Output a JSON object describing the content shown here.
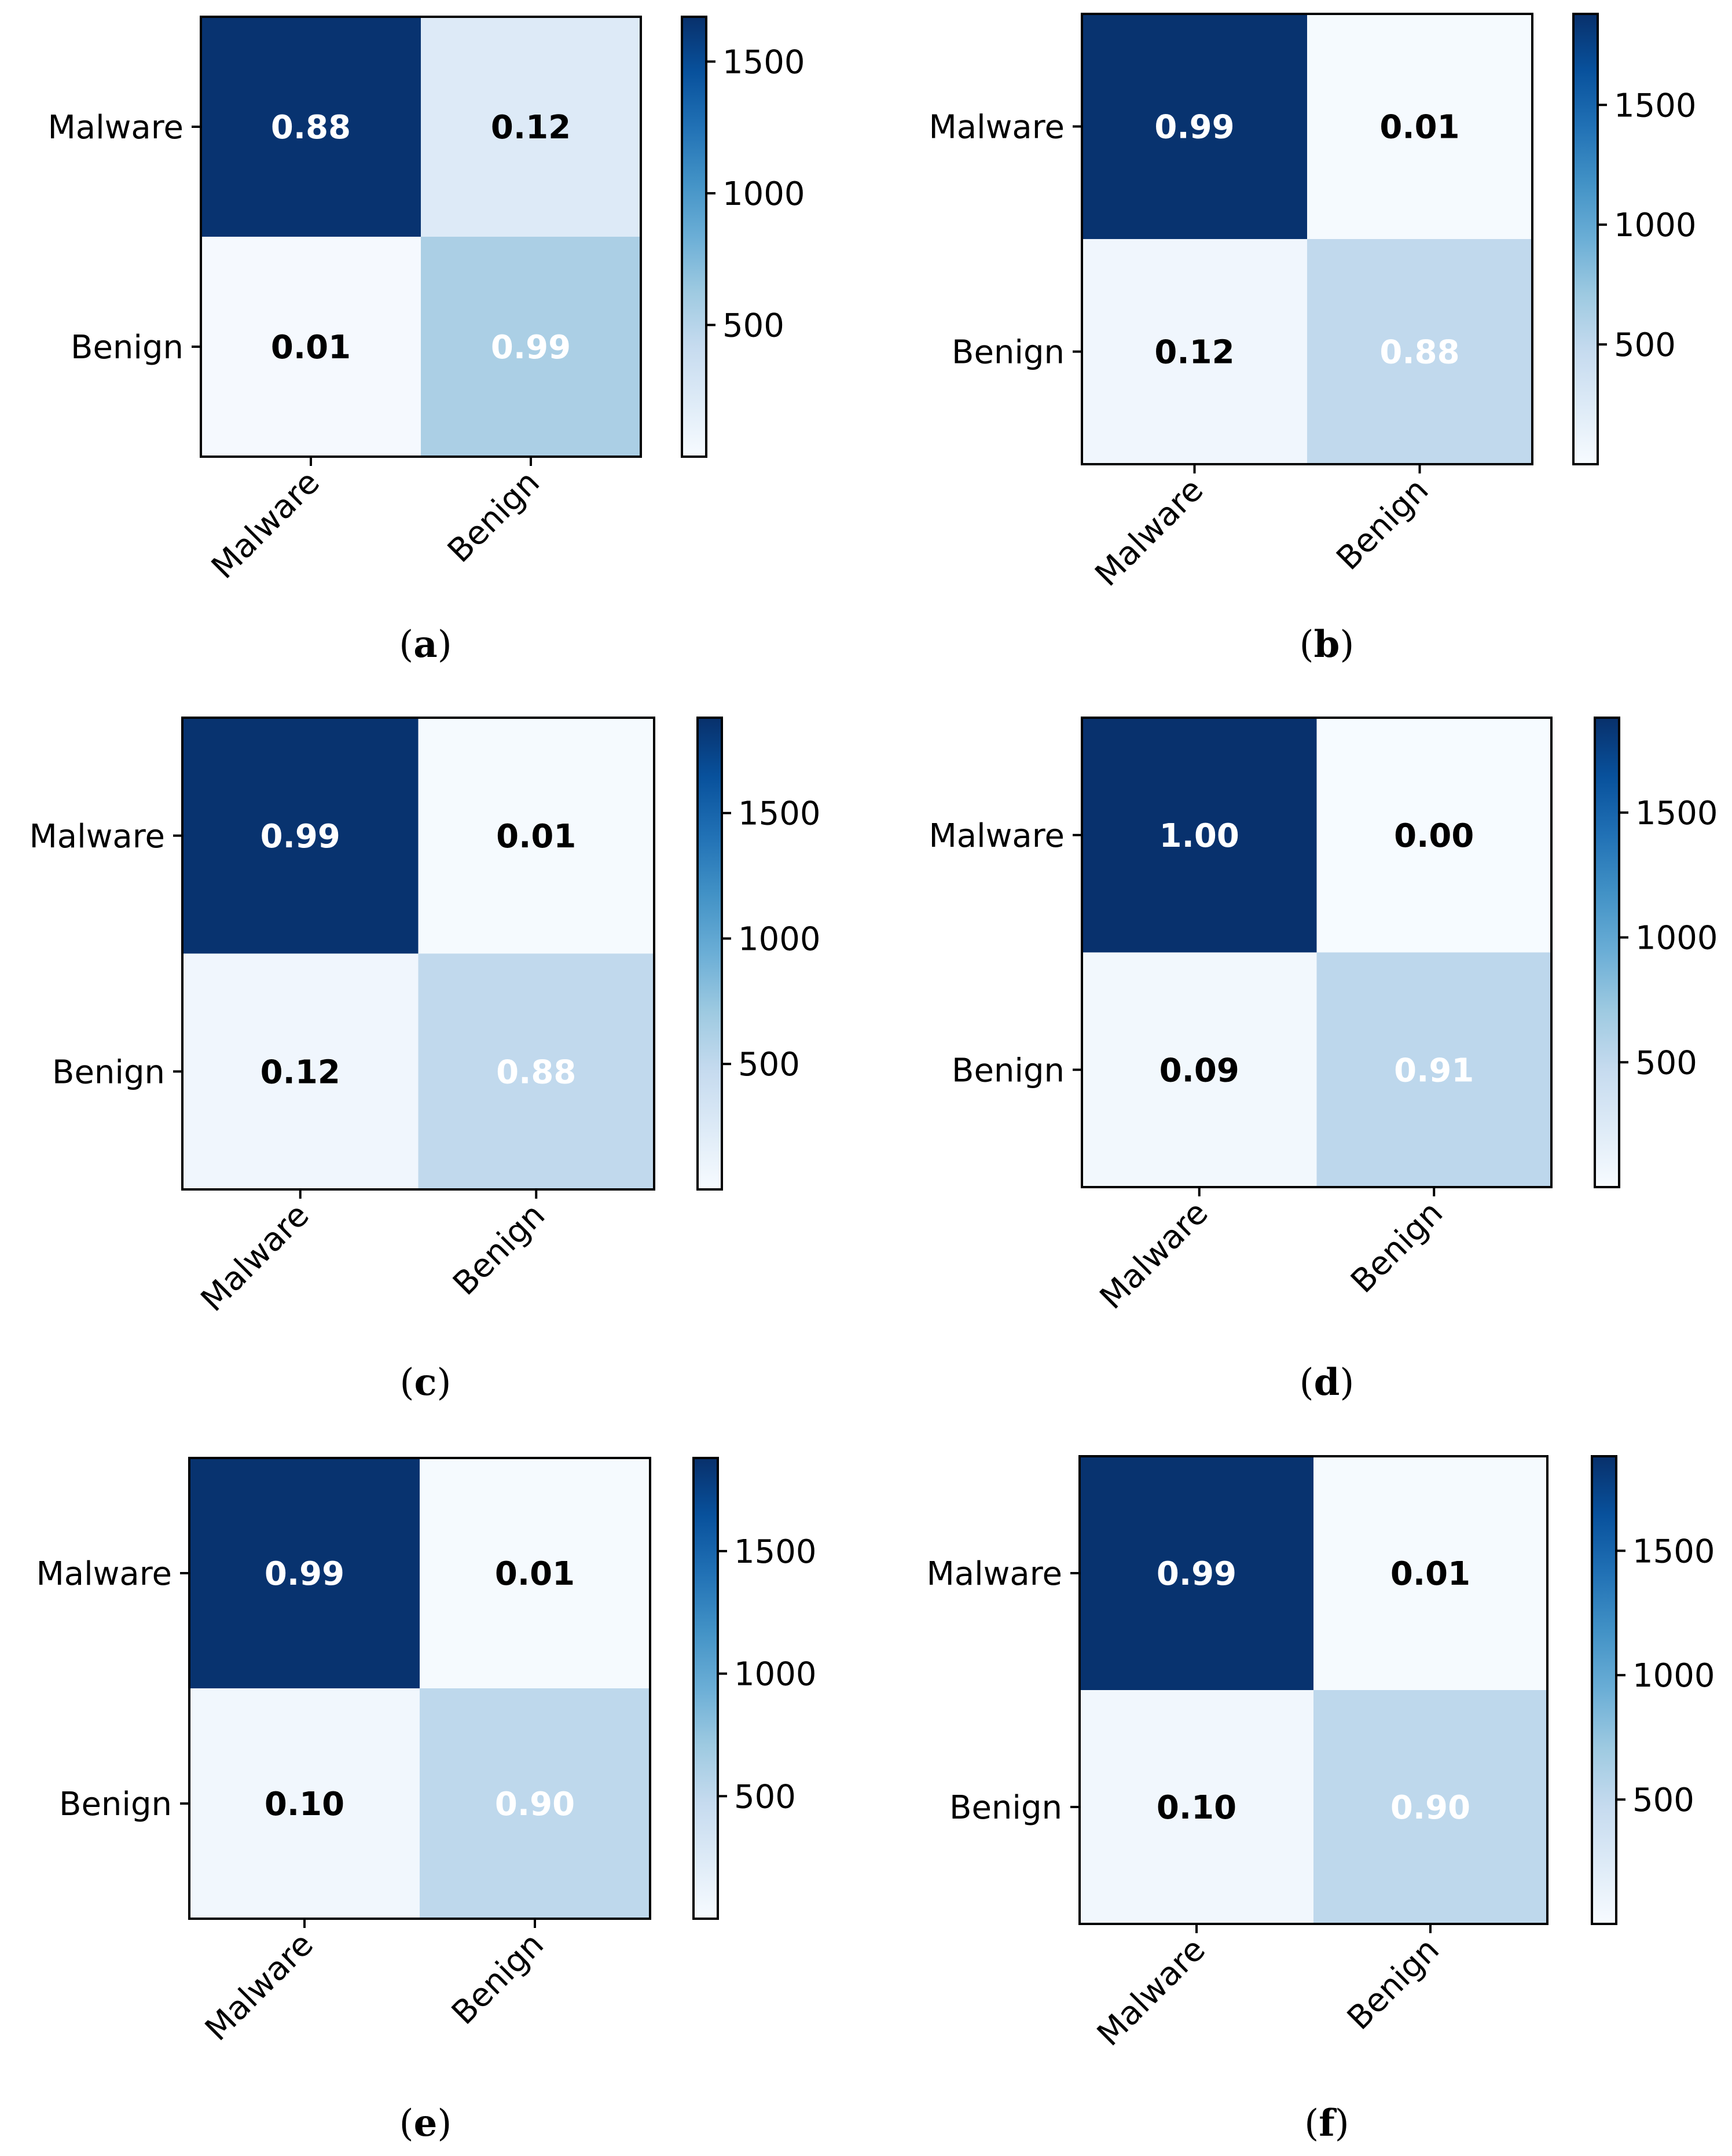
{
  "colors": {
    "cmap_low": "#f7fbff",
    "cmap_high": "#08306b",
    "text_dark": "#000000",
    "text_light": "#ffffff"
  },
  "chart_data": [
    {
      "type": "heatmap",
      "caption": "a",
      "rows": [
        "Malware",
        "Benign"
      ],
      "cols": [
        "Malware",
        "Benign"
      ],
      "values": [
        [
          0.88,
          0.12
        ],
        [
          0.01,
          0.99
        ]
      ],
      "value_labels": [
        [
          "0.88",
          "0.12"
        ],
        [
          "0.01",
          "0.99"
        ]
      ],
      "counts": [
        [
          1650,
          220
        ],
        [
          20,
          560
        ]
      ],
      "colorbar": {
        "min": 0,
        "max": 1670,
        "ticks": [
          500,
          1000,
          1500
        ],
        "tick_labels": [
          "500",
          "1000",
          "1500"
        ]
      }
    },
    {
      "type": "heatmap",
      "caption": "b",
      "rows": [
        "Malware",
        "Benign"
      ],
      "cols": [
        "Malware",
        "Benign"
      ],
      "values": [
        [
          0.99,
          0.01
        ],
        [
          0.12,
          0.88
        ]
      ],
      "value_labels": [
        [
          "0.99",
          "0.01"
        ],
        [
          "0.12",
          "0.88"
        ]
      ],
      "counts": [
        [
          1860,
          20
        ],
        [
          70,
          500
        ]
      ],
      "colorbar": {
        "min": 0,
        "max": 1880,
        "ticks": [
          500,
          1000,
          1500
        ],
        "tick_labels": [
          "500",
          "1000",
          "1500"
        ]
      }
    },
    {
      "type": "heatmap",
      "caption": "c",
      "rows": [
        "Malware",
        "Benign"
      ],
      "cols": [
        "Malware",
        "Benign"
      ],
      "values": [
        [
          0.99,
          0.01
        ],
        [
          0.12,
          0.88
        ]
      ],
      "value_labels": [
        [
          "0.99",
          "0.01"
        ],
        [
          "0.12",
          "0.88"
        ]
      ],
      "counts": [
        [
          1860,
          20
        ],
        [
          70,
          500
        ]
      ],
      "colorbar": {
        "min": 0,
        "max": 1880,
        "ticks": [
          500,
          1000,
          1500
        ],
        "tick_labels": [
          "500",
          "1000",
          "1500"
        ]
      }
    },
    {
      "type": "heatmap",
      "caption": "d",
      "rows": [
        "Malware",
        "Benign"
      ],
      "cols": [
        "Malware",
        "Benign"
      ],
      "values": [
        [
          1.0,
          0.0
        ],
        [
          0.09,
          0.91
        ]
      ],
      "value_labels": [
        [
          "1.00",
          "0.00"
        ],
        [
          "0.09",
          "0.91"
        ]
      ],
      "counts": [
        [
          1870,
          5
        ],
        [
          50,
          520
        ]
      ],
      "colorbar": {
        "min": 0,
        "max": 1880,
        "ticks": [
          500,
          1000,
          1500
        ],
        "tick_labels": [
          "500",
          "1000",
          "1500"
        ]
      }
    },
    {
      "type": "heatmap",
      "caption": "e",
      "rows": [
        "Malware",
        "Benign"
      ],
      "cols": [
        "Malware",
        "Benign"
      ],
      "values": [
        [
          0.99,
          0.01
        ],
        [
          0.1,
          0.9
        ]
      ],
      "value_labels": [
        [
          "0.99",
          "0.01"
        ],
        [
          "0.10",
          "0.90"
        ]
      ],
      "counts": [
        [
          1860,
          20
        ],
        [
          60,
          515
        ]
      ],
      "colorbar": {
        "min": 0,
        "max": 1880,
        "ticks": [
          500,
          1000,
          1500
        ],
        "tick_labels": [
          "500",
          "1000",
          "1500"
        ]
      }
    },
    {
      "type": "heatmap",
      "caption": "f",
      "rows": [
        "Malware",
        "Benign"
      ],
      "cols": [
        "Malware",
        "Benign"
      ],
      "values": [
        [
          0.99,
          0.01
        ],
        [
          0.1,
          0.9
        ]
      ],
      "value_labels": [
        [
          "0.99",
          "0.01"
        ],
        [
          "0.10",
          "0.90"
        ]
      ],
      "counts": [
        [
          1860,
          20
        ],
        [
          60,
          515
        ]
      ],
      "colorbar": {
        "min": 0,
        "max": 1880,
        "ticks": [
          500,
          1000,
          1500
        ],
        "tick_labels": [
          "500",
          "1000",
          "1500"
        ]
      }
    }
  ]
}
